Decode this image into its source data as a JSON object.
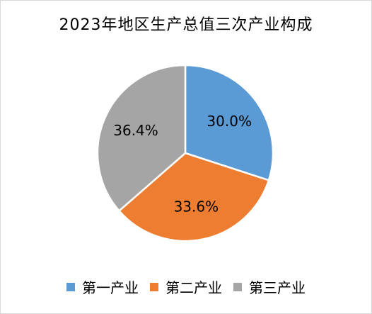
{
  "chart_data": {
    "type": "pie",
    "title": "2023年地区生产总值三次产业构成",
    "categories": [
      "第一产业",
      "第二产业",
      "第三产业"
    ],
    "values": [
      30.0,
      33.6,
      36.4
    ],
    "labels": [
      "30.0%",
      "33.6%",
      "36.4%"
    ],
    "colors": [
      "#5b9bd5",
      "#ed7d31",
      "#a5a5a5"
    ],
    "legend": "bottom",
    "start_angle": "12 o'clock",
    "direction": "clockwise"
  }
}
